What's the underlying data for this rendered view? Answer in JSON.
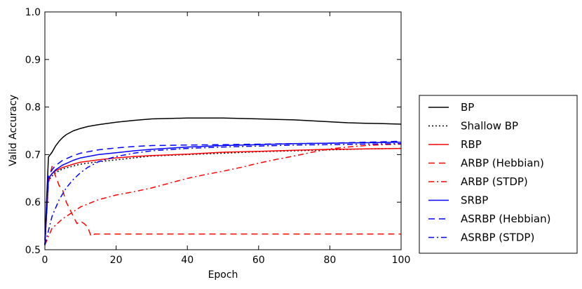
{
  "chart_data": {
    "type": "line",
    "title": "",
    "xlabel": "Epoch",
    "ylabel": "Valid Accuracy",
    "xlim": [
      0,
      100
    ],
    "ylim": [
      0.5,
      1.0
    ],
    "xticks": [
      0,
      20,
      40,
      60,
      80,
      100
    ],
    "yticks": [
      0.5,
      0.6,
      0.7,
      0.8,
      0.9,
      1.0
    ],
    "xtick_labels": [
      "0",
      "20",
      "40",
      "60",
      "80",
      "100"
    ],
    "ytick_labels": [
      "0.5",
      "0.6",
      "0.7",
      "0.8",
      "0.9",
      "1.0"
    ],
    "grid": false,
    "legend_position": "outside-right",
    "series": [
      {
        "name": "BP",
        "color": "#000000",
        "style": "solid",
        "x": [
          0,
          1,
          2,
          3,
          4,
          5,
          6,
          8,
          10,
          12,
          15,
          20,
          25,
          30,
          35,
          40,
          45,
          50,
          55,
          60,
          65,
          70,
          75,
          80,
          85,
          90,
          95,
          100
        ],
        "y": [
          0.52,
          0.695,
          0.705,
          0.718,
          0.728,
          0.736,
          0.742,
          0.75,
          0.755,
          0.759,
          0.763,
          0.768,
          0.772,
          0.775,
          0.776,
          0.777,
          0.777,
          0.777,
          0.776,
          0.775,
          0.774,
          0.773,
          0.771,
          0.769,
          0.767,
          0.766,
          0.765,
          0.764
        ]
      },
      {
        "name": "Shallow BP",
        "color": "#000000",
        "style": "dotted",
        "x": [
          0,
          1,
          2,
          3,
          5,
          8,
          10,
          15,
          20,
          25,
          30,
          40,
          50,
          60,
          70,
          80,
          90,
          100
        ],
        "y": [
          0.51,
          0.645,
          0.655,
          0.662,
          0.67,
          0.676,
          0.68,
          0.685,
          0.689,
          0.693,
          0.697,
          0.7,
          0.703,
          0.706,
          0.708,
          0.71,
          0.712,
          0.713
        ]
      },
      {
        "name": "RBP",
        "color": "#ff0000",
        "style": "solid",
        "x": [
          0,
          1,
          2,
          3,
          5,
          8,
          10,
          15,
          20,
          25,
          30,
          40,
          50,
          60,
          70,
          80,
          90,
          100
        ],
        "y": [
          0.51,
          0.65,
          0.66,
          0.666,
          0.673,
          0.68,
          0.684,
          0.689,
          0.693,
          0.696,
          0.698,
          0.701,
          0.705,
          0.707,
          0.709,
          0.711,
          0.712,
          0.713
        ]
      },
      {
        "name": "ARBP (Hebbian)",
        "color": "#ff0000",
        "style": "dashed",
        "x": [
          0,
          1,
          2,
          3,
          4,
          5,
          6,
          7,
          8,
          9,
          10,
          11,
          12,
          13,
          14,
          15,
          20,
          30,
          40,
          50,
          60,
          70,
          80,
          90,
          100
        ],
        "y": [
          0.51,
          0.64,
          0.675,
          0.655,
          0.635,
          0.625,
          0.6,
          0.585,
          0.57,
          0.555,
          0.56,
          0.555,
          0.548,
          0.528,
          0.533,
          0.533,
          0.533,
          0.533,
          0.533,
          0.533,
          0.533,
          0.533,
          0.533,
          0.533,
          0.533
        ]
      },
      {
        "name": "ARBP (STDP)",
        "color": "#ff0000",
        "style": "dashdot",
        "x": [
          0,
          2,
          5,
          10,
          15,
          20,
          25,
          30,
          35,
          40,
          45,
          50,
          55,
          60,
          65,
          70,
          75,
          80,
          85,
          90,
          95,
          100
        ],
        "y": [
          0.51,
          0.545,
          0.565,
          0.59,
          0.605,
          0.615,
          0.622,
          0.63,
          0.64,
          0.65,
          0.658,
          0.665,
          0.673,
          0.682,
          0.69,
          0.697,
          0.705,
          0.712,
          0.716,
          0.719,
          0.721,
          0.722
        ]
      },
      {
        "name": "SRBP",
        "color": "#0000ff",
        "style": "solid",
        "x": [
          0,
          1,
          2,
          3,
          5,
          8,
          10,
          15,
          20,
          25,
          30,
          40,
          50,
          60,
          70,
          80,
          90,
          100
        ],
        "y": [
          0.51,
          0.65,
          0.66,
          0.668,
          0.678,
          0.688,
          0.693,
          0.7,
          0.704,
          0.708,
          0.711,
          0.716,
          0.719,
          0.721,
          0.723,
          0.724,
          0.725,
          0.726
        ]
      },
      {
        "name": "ASRBP (Hebbian)",
        "color": "#0000ff",
        "style": "dashed",
        "x": [
          0,
          1,
          2,
          3,
          5,
          8,
          10,
          15,
          20,
          25,
          30,
          40,
          50,
          60,
          70,
          80,
          90,
          100
        ],
        "y": [
          0.51,
          0.655,
          0.668,
          0.677,
          0.688,
          0.698,
          0.703,
          0.71,
          0.714,
          0.717,
          0.719,
          0.72,
          0.721,
          0.722,
          0.723,
          0.724,
          0.726,
          0.728
        ]
      },
      {
        "name": "ASRBP (STDP)",
        "color": "#0000ff",
        "style": "dashdot",
        "x": [
          0,
          2,
          4,
          6,
          8,
          10,
          12,
          15,
          20,
          25,
          30,
          40,
          50,
          60,
          70,
          80,
          90,
          100
        ],
        "y": [
          0.51,
          0.57,
          0.605,
          0.63,
          0.648,
          0.662,
          0.673,
          0.685,
          0.696,
          0.703,
          0.708,
          0.713,
          0.716,
          0.718,
          0.72,
          0.721,
          0.722,
          0.723
        ]
      }
    ]
  }
}
